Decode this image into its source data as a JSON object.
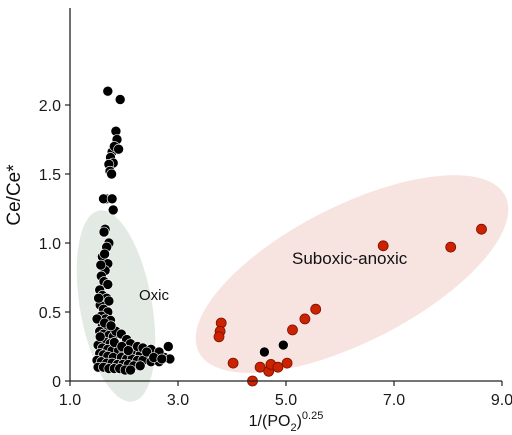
{
  "chart_data": {
    "type": "scatter",
    "title": "",
    "xlabel": "1/(PO",
    "xlabel_sub": "2",
    "xlabel_close": ")",
    "xlabel_sup": "0.25",
    "ylabel": "Ce/Ce*",
    "xlim": [
      1.0,
      9.0
    ],
    "ylim": [
      0,
      2.2
    ],
    "x_ticks": [
      1.0,
      3.0,
      5.0,
      7.0,
      9.0
    ],
    "x_tick_labels": [
      "1.0",
      "3.0",
      "5.0",
      "7.0",
      "9.0"
    ],
    "y_ticks": [
      0,
      0.5,
      1.0,
      1.5,
      2.0
    ],
    "y_tick_labels": [
      "0",
      "0.5",
      "1.0",
      "1.5",
      "2.0"
    ],
    "grid": false,
    "annotations": {
      "oxic": "Oxic",
      "suboxic": "Suboxic-anoxic"
    },
    "colors": {
      "oxic_points": "#000000",
      "suboxic_points": "#cc2200",
      "oxic_ellipse": "#dfe8e0",
      "suboxic_ellipse": "#f7e3df"
    },
    "series": [
      {
        "key": "oxic",
        "points": [
          [
            1.7,
            2.1
          ],
          [
            1.93,
            2.04
          ],
          [
            1.85,
            1.81
          ],
          [
            1.87,
            1.75
          ],
          [
            1.78,
            1.66
          ],
          [
            1.82,
            1.7
          ],
          [
            1.75,
            1.62
          ],
          [
            1.9,
            1.68
          ],
          [
            1.8,
            1.58
          ],
          [
            1.72,
            1.57
          ],
          [
            1.74,
            1.52
          ],
          [
            1.77,
            1.5
          ],
          [
            1.67,
            1.32
          ],
          [
            1.62,
            1.32
          ],
          [
            1.78,
            1.32
          ],
          [
            1.8,
            1.24
          ],
          [
            1.65,
            1.1
          ],
          [
            1.63,
            1.08
          ],
          [
            1.72,
            1.0
          ],
          [
            1.68,
            0.97
          ],
          [
            1.6,
            0.9
          ],
          [
            1.7,
            0.85
          ],
          [
            1.65,
            0.8
          ],
          [
            1.58,
            0.76
          ],
          [
            1.63,
            0.72
          ],
          [
            1.7,
            0.7
          ],
          [
            1.55,
            0.66
          ],
          [
            1.6,
            0.62
          ],
          [
            1.68,
            0.6
          ],
          [
            1.72,
            0.58
          ],
          [
            1.56,
            0.55
          ],
          [
            1.62,
            0.52
          ],
          [
            1.7,
            0.5
          ],
          [
            1.58,
            0.47
          ],
          [
            1.66,
            0.45
          ],
          [
            1.75,
            0.44
          ],
          [
            1.6,
            0.4
          ],
          [
            1.68,
            0.38
          ],
          [
            1.55,
            0.36
          ],
          [
            1.62,
            0.34
          ],
          [
            1.72,
            0.33
          ],
          [
            1.8,
            0.32
          ],
          [
            1.58,
            0.3
          ],
          [
            1.66,
            0.28
          ],
          [
            1.74,
            0.27
          ],
          [
            1.85,
            0.26
          ],
          [
            1.52,
            0.26
          ],
          [
            1.6,
            0.24
          ],
          [
            1.7,
            0.23
          ],
          [
            1.78,
            0.22
          ],
          [
            1.9,
            0.22
          ],
          [
            2.0,
            0.21
          ],
          [
            2.1,
            0.2
          ],
          [
            2.2,
            0.2
          ],
          [
            2.3,
            0.19
          ],
          [
            2.45,
            0.19
          ],
          [
            2.6,
            0.18
          ],
          [
            2.75,
            0.17
          ],
          [
            2.82,
            0.25
          ],
          [
            2.85,
            0.16
          ],
          [
            1.55,
            0.2
          ],
          [
            1.62,
            0.19
          ],
          [
            1.7,
            0.18
          ],
          [
            1.8,
            0.17
          ],
          [
            1.95,
            0.17
          ],
          [
            2.05,
            0.16
          ],
          [
            2.15,
            0.16
          ],
          [
            2.25,
            0.15
          ],
          [
            2.35,
            0.15
          ],
          [
            2.5,
            0.14
          ],
          [
            2.65,
            0.14
          ],
          [
            1.5,
            0.15
          ],
          [
            1.58,
            0.14
          ],
          [
            1.68,
            0.13
          ],
          [
            1.78,
            0.13
          ],
          [
            1.88,
            0.12
          ],
          [
            1.98,
            0.12
          ],
          [
            2.08,
            0.12
          ],
          [
            2.18,
            0.11
          ],
          [
            2.3,
            0.11
          ],
          [
            1.52,
            0.1
          ],
          [
            1.62,
            0.1
          ],
          [
            1.72,
            0.09
          ],
          [
            1.82,
            0.09
          ],
          [
            1.92,
            0.09
          ],
          [
            2.02,
            0.08
          ],
          [
            2.12,
            0.08
          ],
          [
            1.85,
            0.36
          ],
          [
            1.95,
            0.34
          ],
          [
            2.05,
            0.3
          ],
          [
            2.12,
            0.27
          ],
          [
            2.25,
            0.25
          ],
          [
            2.35,
            0.24
          ],
          [
            2.5,
            0.23
          ],
          [
            2.65,
            0.21
          ],
          [
            1.5,
            0.45
          ],
          [
            1.53,
            0.6
          ],
          [
            1.57,
            0.84
          ],
          [
            1.64,
            0.92
          ],
          [
            1.56,
            0.32
          ],
          [
            1.64,
            0.42
          ],
          [
            1.76,
            0.4
          ],
          [
            1.82,
            0.28
          ],
          [
            1.96,
            0.25
          ],
          [
            2.08,
            0.22
          ],
          [
            2.42,
            0.21
          ],
          [
            2.55,
            0.17
          ],
          [
            2.7,
            0.16
          ],
          [
            4.6,
            0.21
          ],
          [
            4.95,
            0.26
          ],
          [
            4.72,
            0.1
          ]
        ]
      },
      {
        "key": "suboxic",
        "points": [
          [
            3.8,
            0.42
          ],
          [
            3.78,
            0.36
          ],
          [
            3.76,
            0.32
          ],
          [
            4.02,
            0.13
          ],
          [
            4.38,
            0.0
          ],
          [
            4.52,
            0.1
          ],
          [
            4.68,
            0.07
          ],
          [
            4.72,
            0.12
          ],
          [
            4.85,
            0.1
          ],
          [
            5.02,
            0.13
          ],
          [
            5.12,
            0.37
          ],
          [
            5.35,
            0.45
          ],
          [
            5.55,
            0.52
          ],
          [
            6.8,
            0.98
          ],
          [
            8.05,
            0.97
          ],
          [
            8.62,
            1.1
          ]
        ]
      }
    ]
  }
}
